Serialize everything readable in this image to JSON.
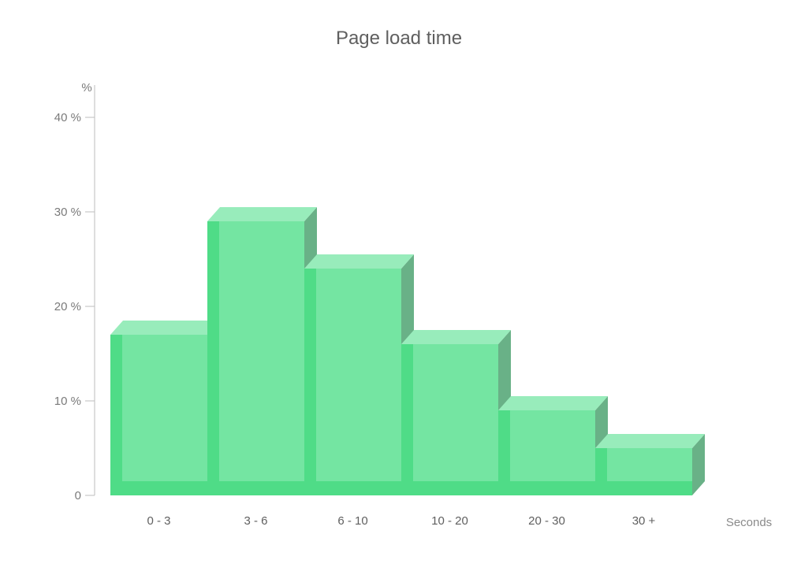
{
  "chart_data": {
    "type": "bar",
    "title": "Page load time",
    "xlabel": "Seconds",
    "ylabel": "%",
    "categories": [
      "0 - 3",
      "3 - 6",
      "6 - 10",
      "10 - 20",
      "20 - 30",
      "30 +"
    ],
    "values": [
      17,
      29,
      24,
      16,
      9,
      5
    ],
    "ylim": [
      0,
      40
    ],
    "yticks": [
      0,
      10,
      20,
      30,
      40
    ],
    "ytick_labels": [
      "0",
      "10 %",
      "20 %",
      "30 %",
      "40 %"
    ],
    "grid": false,
    "legend": "none",
    "style": "3d",
    "colors": {
      "front": "#74e5a2",
      "top": "#98ecbb",
      "side": "#69b187",
      "edge": "#4fdc87",
      "axis": "#bdbdbd",
      "text": "#5f5f5f",
      "muted": "#7a7a7a"
    }
  }
}
